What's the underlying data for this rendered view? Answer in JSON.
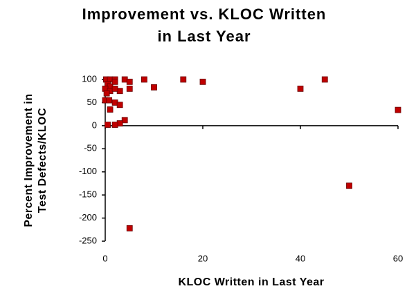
{
  "chart_data": {
    "type": "scatter",
    "title": [
      "Improvement vs. KLOC Written",
      "in Last Year"
    ],
    "x_label": "KLOC Written in Last Year",
    "y_label": [
      "Percent Improvement in",
      "Test Defects/KLOC"
    ],
    "color": "#c00000",
    "xlim": [
      0,
      60
    ],
    "xticks": [
      0,
      20,
      40,
      60
    ],
    "ylim": [
      -250,
      100
    ],
    "yticks": [
      100,
      50,
      0,
      -50,
      -100,
      -150,
      -200,
      -250
    ],
    "x": [
      60,
      45,
      40,
      50,
      20,
      16,
      10,
      8,
      5,
      4,
      5,
      5,
      3,
      2,
      3,
      4,
      3,
      2,
      0.5,
      1,
      0.2,
      1,
      2,
      0.5,
      1,
      0,
      1,
      2,
      0,
      0.8,
      2,
      0.3
    ],
    "values": [
      34,
      100,
      80,
      -130,
      95,
      100,
      83,
      100,
      -222,
      100,
      95,
      80,
      75,
      50,
      45,
      12,
      5,
      2,
      2,
      35,
      100,
      100,
      100,
      90,
      85,
      80,
      75,
      80,
      55,
      55,
      95,
      70
    ]
  }
}
